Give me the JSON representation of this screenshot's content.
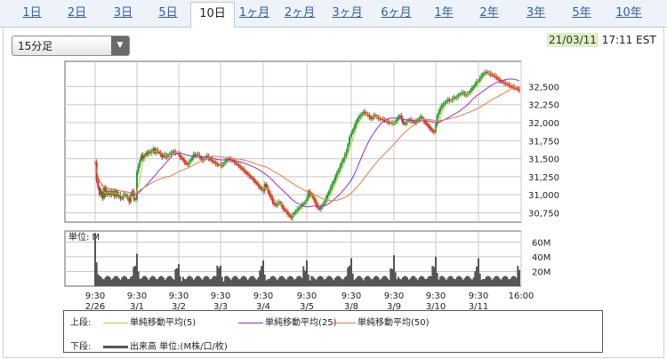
{
  "tabs": [
    {
      "label": "1日"
    },
    {
      "label": "2日"
    },
    {
      "label": "3日"
    },
    {
      "label": "5日"
    },
    {
      "label": "10日"
    },
    {
      "label": "1ヶ月"
    },
    {
      "label": "2ヶ月"
    },
    {
      "label": "3ヶ月"
    },
    {
      "label": "6ヶ月"
    },
    {
      "label": "1年"
    },
    {
      "label": "2年"
    },
    {
      "label": "3年"
    },
    {
      "label": "5年"
    },
    {
      "label": "10年"
    }
  ],
  "selected_tab": "10日",
  "interval_select": {
    "value": "15分足"
  },
  "timestamp": {
    "date": "21/03/11",
    "time": "17:11 EST"
  },
  "legend": {
    "upper_label": "上段:",
    "lower_label": "下段:",
    "ma5": "単純移動平均(5)",
    "ma25": "単純移動平均(25)",
    "ma50": "単純移動平均(50)",
    "volume": "出来高 単位:(M株/口/枚)"
  },
  "colors": {
    "up": "#2a9a3a",
    "down": "#d42a2a",
    "ma5": "#b7cc3a",
    "ma25": "#9a2ad6",
    "ma50": "#ec7a3c",
    "volume": "#555555",
    "grid": "#c8c8c8"
  },
  "chart_data": {
    "type": "candlestick",
    "price_axis": {
      "ticks": [
        "32,500",
        "32,250",
        "32,000",
        "31,750",
        "31,500",
        "31,250",
        "31,000",
        "30,750"
      ],
      "values": [
        32500,
        32250,
        32000,
        31750,
        31500,
        31250,
        31000,
        30750
      ],
      "ylim": [
        30620,
        32850
      ]
    },
    "volume_axis": {
      "label": "単位: M",
      "ticks": [
        "60M",
        "40M",
        "20M"
      ],
      "values": [
        60,
        40,
        20
      ],
      "ylim": [
        0,
        75
      ]
    },
    "x_ticks": [
      {
        "time": "9:30",
        "date": "2/26"
      },
      {
        "time": "9:30",
        "date": "3/1"
      },
      {
        "time": "9:30",
        "date": "3/2"
      },
      {
        "time": "9:30",
        "date": "3/3"
      },
      {
        "time": "9:30",
        "date": "3/4"
      },
      {
        "time": "9:30",
        "date": "3/5"
      },
      {
        "time": "9:30",
        "date": "3/8"
      },
      {
        "time": "9:30",
        "date": "3/9"
      },
      {
        "time": "9:30",
        "date": "3/10"
      },
      {
        "time": "9:30",
        "date": "3/11"
      },
      {
        "time": "16:00",
        "date": ""
      }
    ],
    "day_closes": [
      {
        "date": "2/26",
        "values": [
          31450,
          31200,
          31100,
          31000,
          31050,
          30950,
          31100,
          31000,
          31050,
          31000,
          31050,
          31000,
          31050,
          30980,
          31050,
          30980,
          31000,
          30950,
          30950,
          31000,
          31000,
          30980,
          30950,
          30900,
          31000,
          31050,
          30950,
          30930
        ]
      },
      {
        "date": "3/1",
        "values": [
          31320,
          31400,
          31480,
          31550,
          31500,
          31540,
          31580,
          31560,
          31600,
          31580,
          31600,
          31640,
          31580,
          31620,
          31600,
          31580,
          31560,
          31520,
          31560,
          31540,
          31520,
          31560,
          31560,
          31580,
          31600,
          31590,
          31580,
          31580
        ]
      },
      {
        "date": "3/2",
        "values": [
          31560,
          31520,
          31500,
          31480,
          31450,
          31430,
          31420,
          31450,
          31480,
          31520,
          31560,
          31540,
          31560,
          31560,
          31520,
          31500,
          31480,
          31500,
          31520,
          31540,
          31500,
          31480,
          31490,
          31460,
          31450,
          31430,
          31420,
          31410
        ]
      },
      {
        "date": "3/3",
        "values": [
          31420,
          31400,
          31440,
          31460,
          31480,
          31500,
          31490,
          31480,
          31470,
          31450,
          31440,
          31420,
          31400,
          31380,
          31360,
          31340,
          31320,
          31300,
          31280,
          31260,
          31240,
          31220,
          31200,
          31170,
          31150,
          31120,
          31100,
          31070
        ]
      },
      {
        "date": "3/4",
        "values": [
          31050,
          31150,
          31100,
          31050,
          31000,
          30950,
          30900,
          30870,
          30850,
          30880,
          30900,
          30870,
          30840,
          30800,
          30780,
          30760,
          30730,
          30700,
          30680,
          30720,
          30750,
          30770,
          30800,
          30820,
          30840,
          30860,
          30880,
          30900
        ]
      },
      {
        "date": "3/5",
        "values": [
          30950,
          31050,
          31000,
          31000,
          30950,
          30900,
          30850,
          30820,
          30800,
          30830,
          30860,
          30900,
          30950,
          31000,
          31050,
          31100,
          31150,
          31200,
          31250,
          31300,
          31350,
          31400,
          31450,
          31500,
          31550,
          31600,
          31700,
          31800
        ]
      },
      {
        "date": "3/8",
        "values": [
          31850,
          31900,
          31950,
          32000,
          32050,
          32080,
          32100,
          32120,
          32150,
          32130,
          32120,
          32100,
          32080,
          32050,
          32080,
          32100,
          32090,
          32070,
          32060,
          32050,
          32050,
          32040,
          32030,
          32020,
          32010,
          32000,
          32000,
          31990
        ]
      },
      {
        "date": "3/9",
        "values": [
          31990,
          32020,
          32050,
          32080,
          32100,
          32050,
          32000,
          31980,
          32000,
          32020,
          32040,
          32030,
          32020,
          32010,
          32000,
          32020,
          32040,
          32060,
          32080,
          32050,
          32020,
          32000,
          31980,
          31950,
          31930,
          31900,
          31880,
          31870
        ]
      },
      {
        "date": "3/10",
        "values": [
          31980,
          32100,
          32150,
          32200,
          32250,
          32250,
          32280,
          32300,
          32320,
          32300,
          32310,
          32330,
          32350,
          32340,
          32360,
          32380,
          32400,
          32410,
          32420,
          32380,
          32390,
          32400,
          32420,
          32450,
          32480,
          32500,
          32540,
          32570
        ]
      },
      {
        "date": "3/11",
        "values": [
          32580,
          32620,
          32650,
          32680,
          32690,
          32700,
          32690,
          32680,
          32670,
          32660,
          32650,
          32640,
          32620,
          32600,
          32580,
          32570,
          32560,
          32550,
          32540,
          32530,
          32520,
          32510,
          32500,
          32490,
          32480,
          32470,
          32460,
          32450
        ]
      }
    ],
    "volume_peaks": [
      72,
      44,
      30,
      28,
      35,
      35,
      38,
      42,
      40,
      38
    ],
    "moving_averages": [
      {
        "name": "単純移動平均(5)",
        "period": 5
      },
      {
        "name": "単純移動平均(25)",
        "period": 25
      },
      {
        "name": "単純移動平均(50)",
        "period": 50
      }
    ]
  }
}
